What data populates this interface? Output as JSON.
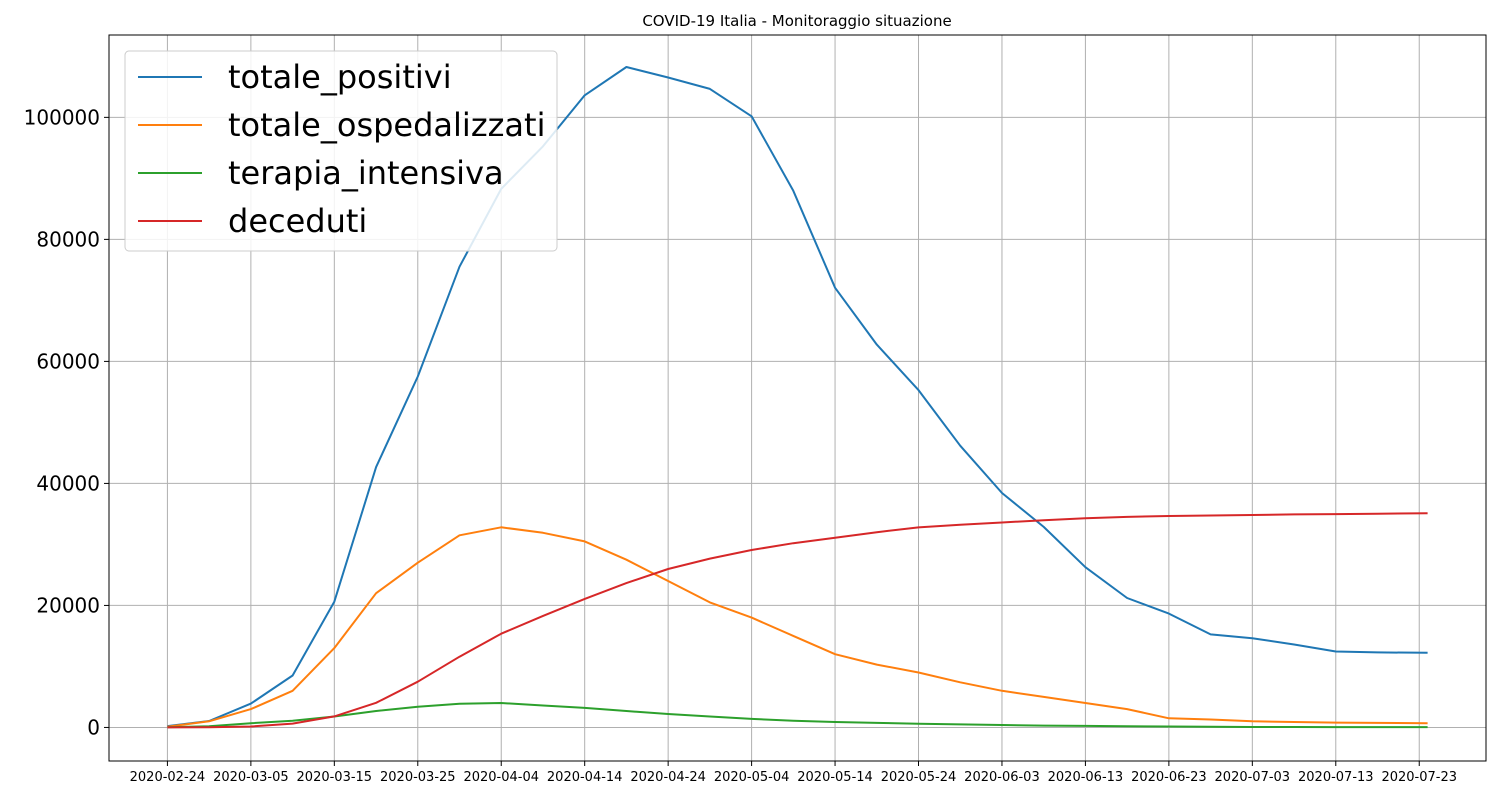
{
  "chart_data": {
    "type": "line",
    "title": "COVID-19 Italia - Monitoraggio situazione",
    "xlabel": "",
    "ylabel": "",
    "grid": true,
    "legend_position": "top-left",
    "x_start": "2020-02-24",
    "x_end": "2020-07-24",
    "xlim": [
      "2020-02-17",
      "2020-07-31"
    ],
    "ylim": [
      -5500,
      113500
    ],
    "x_ticks": [
      "2020-02-24",
      "2020-03-05",
      "2020-03-15",
      "2020-03-25",
      "2020-04-04",
      "2020-04-14",
      "2020-04-24",
      "2020-05-04",
      "2020-05-14",
      "2020-05-24",
      "2020-06-03",
      "2020-06-13",
      "2020-06-23",
      "2020-07-03",
      "2020-07-13",
      "2020-07-23"
    ],
    "y_ticks": [
      0,
      20000,
      40000,
      60000,
      80000,
      100000
    ],
    "x_sample_dates": [
      "2020-02-24",
      "2020-02-29",
      "2020-03-05",
      "2020-03-10",
      "2020-03-15",
      "2020-03-20",
      "2020-03-25",
      "2020-03-30",
      "2020-04-04",
      "2020-04-09",
      "2020-04-14",
      "2020-04-19",
      "2020-04-24",
      "2020-04-29",
      "2020-05-04",
      "2020-05-09",
      "2020-05-14",
      "2020-05-19",
      "2020-05-24",
      "2020-05-29",
      "2020-06-03",
      "2020-06-08",
      "2020-06-13",
      "2020-06-18",
      "2020-06-23",
      "2020-06-28",
      "2020-07-03",
      "2020-07-08",
      "2020-07-13",
      "2020-07-18",
      "2020-07-24"
    ],
    "series": [
      {
        "name": "totale_positivi",
        "color": "#1f77b4",
        "values": [
          221,
          1049,
          3916,
          8514,
          20603,
          42681,
          57521,
          75528,
          88274,
          95262,
          103616,
          108257,
          106527,
          104657,
          100179,
          87961,
          72070,
          62752,
          55300,
          46175,
          38429,
          32872,
          26274,
          21212,
          18655,
          15255,
          14621,
          13595,
          12456,
          12301,
          12230
        ]
      },
      {
        "name": "totale_ospedalizzati",
        "color": "#ff7f0e",
        "values": [
          130,
          1000,
          3000,
          6000,
          13000,
          22000,
          27000,
          31500,
          32800,
          31900,
          30500,
          27500,
          24000,
          20500,
          18000,
          15000,
          12000,
          10300,
          9000,
          7400,
          6000,
          5000,
          4000,
          3000,
          1500,
          1300,
          1000,
          900,
          800,
          750,
          700
        ]
      },
      {
        "name": "terapia_intensiva",
        "color": "#2ca02c",
        "values": [
          26,
          200,
          700,
          1100,
          1800,
          2700,
          3400,
          3900,
          4000,
          3600,
          3200,
          2700,
          2200,
          1800,
          1400,
          1100,
          900,
          750,
          600,
          500,
          400,
          300,
          250,
          200,
          150,
          100,
          80,
          70,
          60,
          55,
          50
        ]
      },
      {
        "name": "deceduti",
        "color": "#d62728",
        "values": [
          7,
          29,
          148,
          631,
          1809,
          4032,
          7503,
          11591,
          15362,
          18279,
          21067,
          23660,
          25969,
          27682,
          29079,
          30201,
          31106,
          32007,
          32785,
          33229,
          33601,
          33964,
          34301,
          34514,
          34657,
          34744,
          34818,
          34914,
          34967,
          35042,
          35102
        ]
      }
    ]
  }
}
